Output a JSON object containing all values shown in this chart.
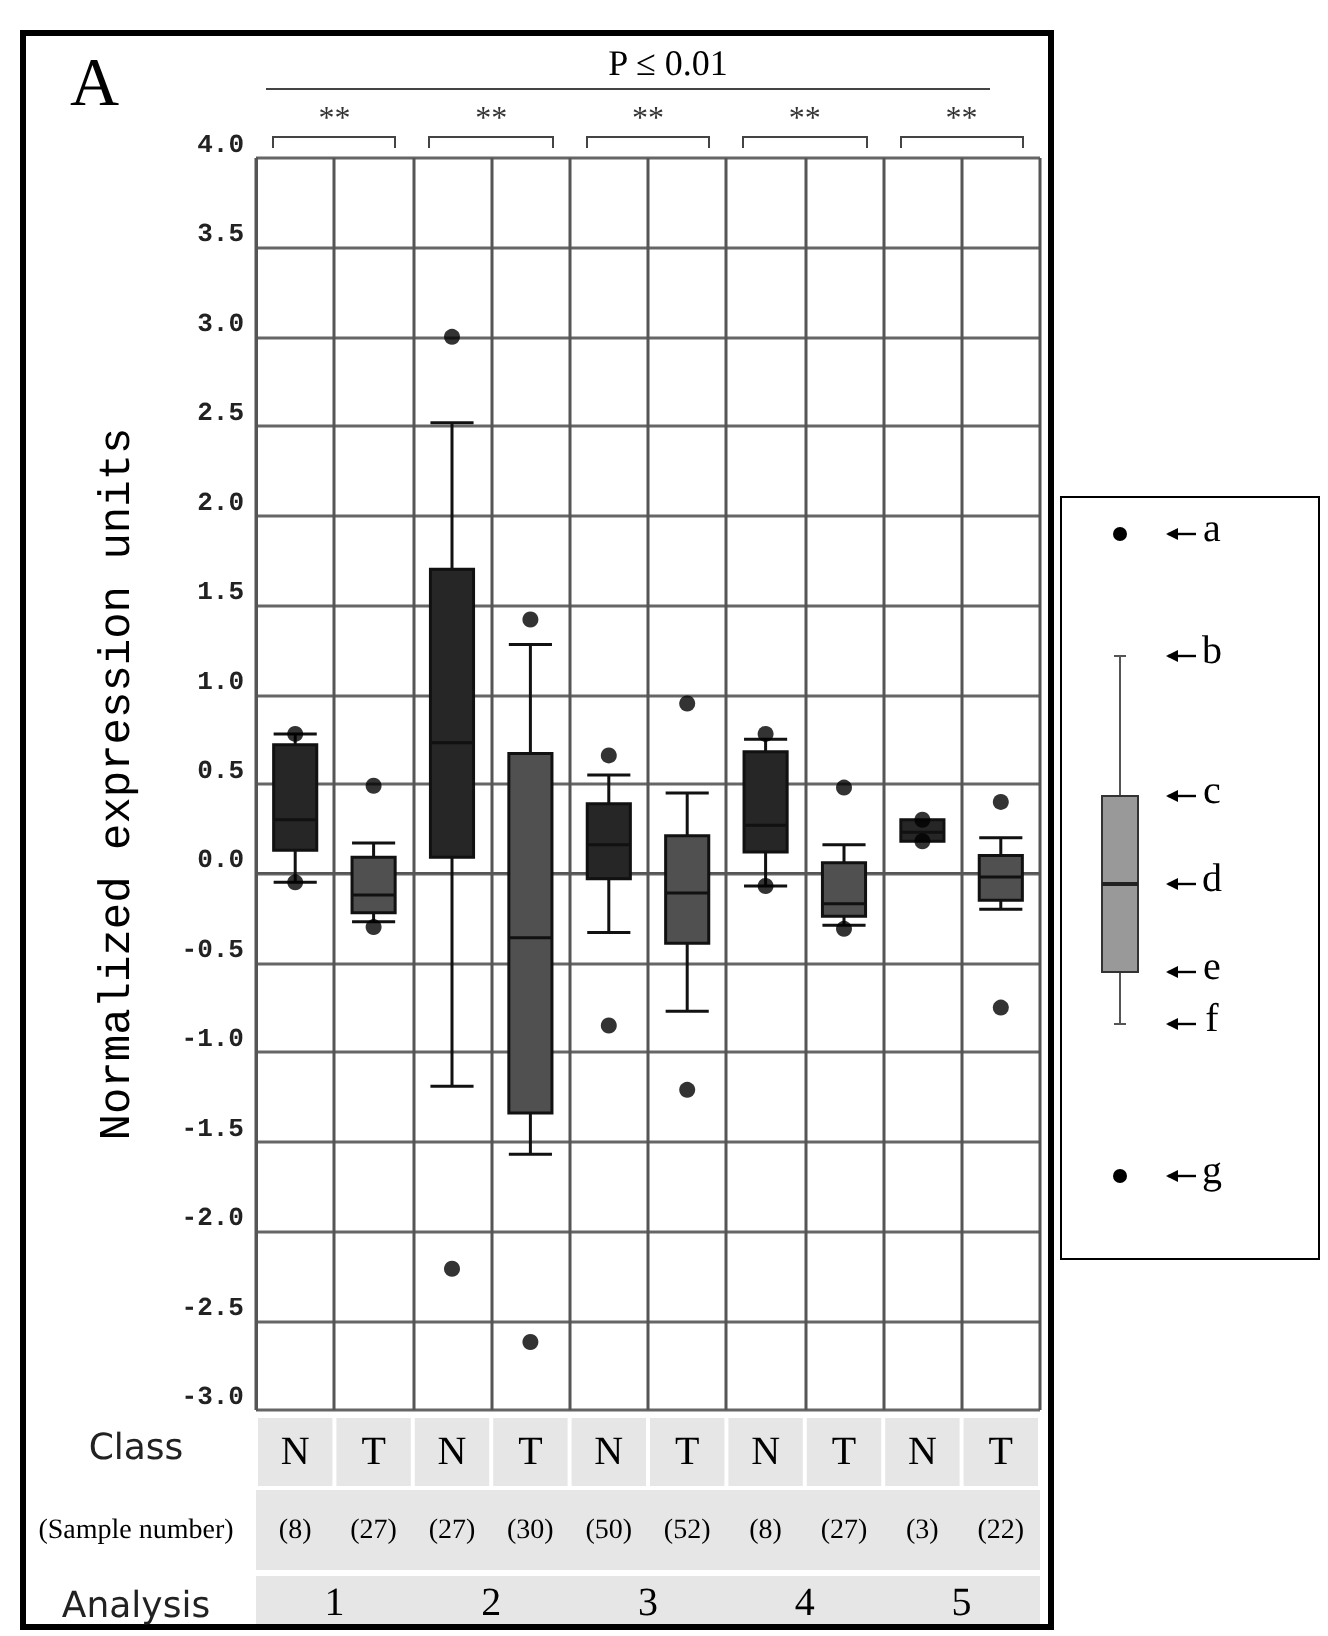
{
  "chart_data": {
    "type": "box",
    "title": "A",
    "ylabel": "Normalized expression units",
    "categories": [
      "N",
      "T",
      "N",
      "T",
      "N",
      "T",
      "N",
      "T",
      "N",
      "T"
    ],
    "colors": [
      "#262626",
      "#505050",
      "#262626",
      "#505050",
      "#262626",
      "#505050",
      "#262626",
      "#505050",
      "#262626",
      "#505050"
    ],
    "boxes": [
      {
        "low": -0.05,
        "q1": 0.13,
        "median": 0.3,
        "q3": 0.72,
        "high": 0.78,
        "outliers": [
          0.78,
          -0.05
        ]
      },
      {
        "low": -0.27,
        "q1": -0.22,
        "median": -0.12,
        "q3": 0.09,
        "high": 0.17,
        "outliers": [
          0.49,
          -0.3
        ]
      },
      {
        "low": -1.19,
        "q1": 0.09,
        "median": 0.73,
        "q3": 1.7,
        "high": 2.52,
        "outliers": [
          3.0,
          -2.21
        ]
      },
      {
        "low": -1.57,
        "q1": -1.34,
        "median": -0.36,
        "q3": 0.67,
        "high": 1.28,
        "outliers": [
          1.42,
          -2.62
        ]
      },
      {
        "low": -0.33,
        "q1": -0.03,
        "median": 0.16,
        "q3": 0.39,
        "high": 0.55,
        "outliers": [
          0.66,
          -0.85
        ]
      },
      {
        "low": -0.77,
        "q1": -0.39,
        "median": -0.11,
        "q3": 0.21,
        "high": 0.45,
        "outliers": [
          0.95,
          -1.21
        ]
      },
      {
        "low": -0.07,
        "q1": 0.12,
        "median": 0.27,
        "q3": 0.68,
        "high": 0.75,
        "outliers": [
          0.78,
          -0.07
        ]
      },
      {
        "low": -0.29,
        "q1": -0.24,
        "median": -0.17,
        "q3": 0.06,
        "high": 0.16,
        "outliers": [
          0.48,
          -0.31
        ]
      },
      {
        "low": 0.18,
        "q1": 0.18,
        "median": 0.23,
        "q3": 0.3,
        "high": 0.3,
        "outliers": [
          0.3,
          0.18
        ]
      },
      {
        "low": -0.2,
        "q1": -0.15,
        "median": -0.02,
        "q3": 0.1,
        "high": 0.2,
        "outliers": [
          0.4,
          -0.75
        ]
      }
    ],
    "ylim": [
      -3,
      4
    ],
    "yticks": [
      {
        "value": -3,
        "label": "-3.0"
      },
      {
        "value": -2.5,
        "label": "-2.5"
      },
      {
        "value": -2,
        "label": "-2.0"
      },
      {
        "value": -1.5,
        "label": "-1.5"
      },
      {
        "value": -1,
        "label": "-1.0"
      },
      {
        "value": -0.5,
        "label": "-0.5"
      },
      {
        "value": 0,
        "label": "0.0"
      },
      {
        "value": 0.5,
        "label": "0.5"
      },
      {
        "value": 1,
        "label": "1.0"
      },
      {
        "value": 1.5,
        "label": "1.5"
      },
      {
        "value": 2,
        "label": "2.0"
      },
      {
        "value": 2.5,
        "label": "2.5"
      },
      {
        "value": 3,
        "label": "3.0"
      },
      {
        "value": 3.5,
        "label": "3.5"
      },
      {
        "value": 4,
        "label": "4.0"
      }
    ],
    "grid": true,
    "marker": "circle",
    "annotations": [
      "P ≤ 0.01",
      "**",
      "**",
      "**",
      "**",
      "**",
      "Class",
      "(Sample number)",
      "Analysis",
      "(8)",
      "(27)",
      "(27)",
      "(30)",
      "(50)",
      "(52)",
      "(8)",
      "(27)",
      "(3)",
      "(22)",
      "1",
      "2",
      "3",
      "4",
      "5",
      "a",
      "b",
      "c",
      "d",
      "e",
      "f",
      "g"
    ]
  }
}
